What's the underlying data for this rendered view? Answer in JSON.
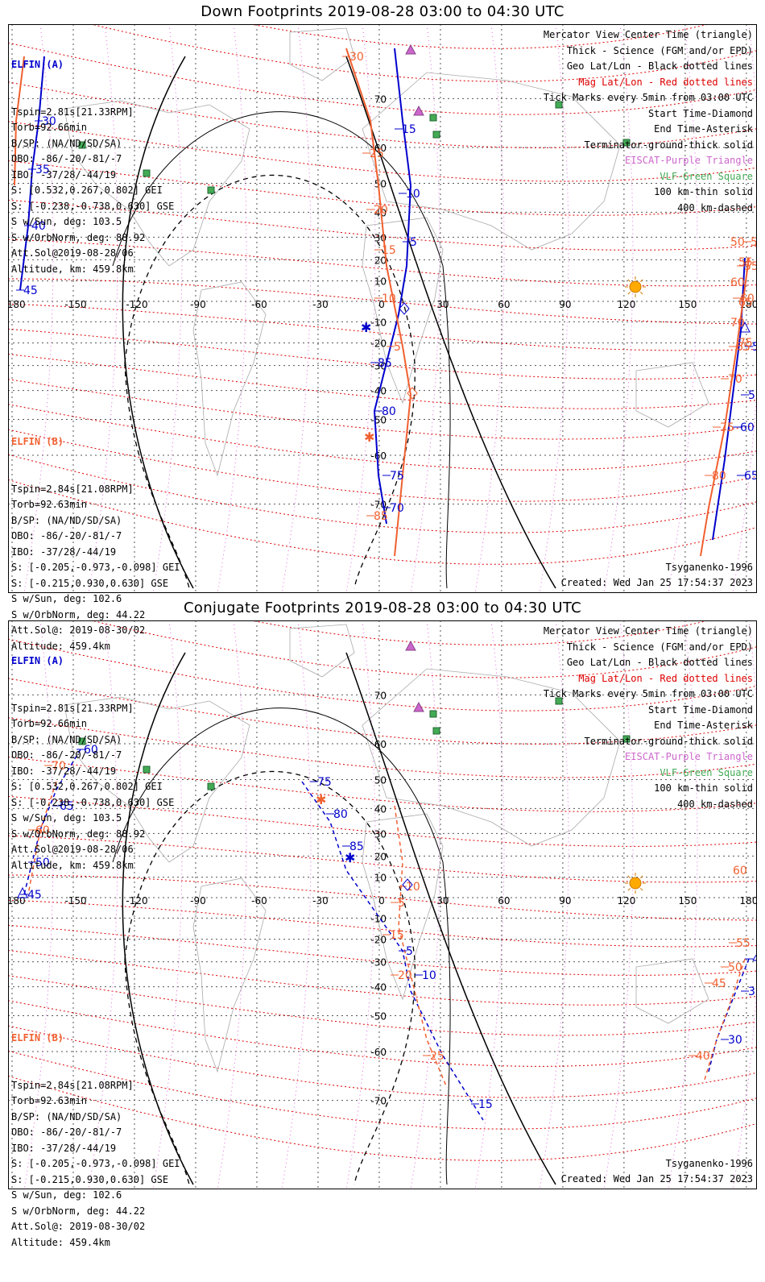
{
  "panels": [
    {
      "title": "Down Footprints 2019-08-28 03:00 to 04:30 UTC",
      "elfin_a": {
        "header": "ELFIN (A)",
        "lines": [
          "Tspin=2.81s[21.33RPM]",
          "Torb=92.66min",
          "B/SP: (NA/ND/SD/SA)",
          "OBO: -86/-20/-81/-7",
          "IBO: -37/28/-44/19",
          "S: [0.532,0.267,0.802] GEI",
          "S: [-0.238,-0.738,0.630] GSE",
          "S w/Sun, deg: 103.5",
          "S w/OrbNorm, deg: 88.92",
          "Att.Sol@2019-08-28/06",
          "Altitude, km: 459.8km"
        ]
      },
      "elfin_b": {
        "header": "ELFIN (B)",
        "lines": [
          "Tspin=2.84s[21.08RPM]",
          "Torb=92.63min",
          "B/SP: (NA/ND/SD/SA)",
          "OBO: -86/-20/-81/-7",
          "IBO: -37/28/-44/19",
          "S: [-0.205,-0.973,-0.098] GEI",
          "S: [-0.215,0.930,0.630] GSE",
          "S w/Sun, deg: 102.6",
          "S w/OrbNorm, deg: 44.22",
          "Att.Sol@: 2019-08-30/02",
          "Altitude: 459.4km"
        ]
      },
      "a_ticks": [
        "30",
        "35",
        "40",
        "45",
        "85",
        "80",
        "75",
        "70",
        "65",
        "60",
        "55",
        "50",
        "15",
        "10",
        "5"
      ],
      "b_ticks": [
        "30",
        "25",
        "20",
        "15",
        "10",
        "5",
        "85",
        "80",
        "75",
        "70",
        "65",
        "60",
        "55",
        "50"
      ]
    },
    {
      "title": "Conjugate Footprints 2019-08-28 03:00 to 04:30 UTC",
      "elfin_a": {
        "header": "ELFIN (A)",
        "lines": [
          "Tspin=2.81s[21.33RPM]",
          "Torb=92.66min",
          "B/SP: (NA/ND/SD/SA)",
          "OBO: -86/-20/-81/-7",
          "IBO: -37/28/-44/19",
          "S: [0.532,0.267,0.802] GEI",
          "S: [-0.238,-0.738,0.630] GSE",
          "S w/Sun, deg: 103.5",
          "S w/OrbNorm, deg: 88.92",
          "Att.Sol@2019-08-28/06",
          "Altitude, km: 459.8km"
        ]
      },
      "elfin_b": {
        "header": "ELFIN (B)",
        "lines": [
          "Tspin=2.84s[21.08RPM]",
          "Torb=92.63min",
          "B/SP: (NA/ND/SD/SA)",
          "OBO: -86/-20/-81/-7",
          "IBO: -37/28/-44/19",
          "S: [-0.205,-0.973,-0.098] GEI",
          "S: [-0.215,0.930,0.630] GSE",
          "S w/Sun, deg: 102.6",
          "S w/OrbNorm, deg: 44.22",
          "Att.Sol@: 2019-08-30/02",
          "Altitude: 459.4km"
        ]
      },
      "a_ticks": [
        "60",
        "65",
        "50",
        "45",
        "75",
        "80",
        "85",
        "5",
        "10",
        "15",
        "40",
        "35",
        "30"
      ],
      "b_ticks": [
        "70",
        "60",
        "5",
        "10",
        "15",
        "20",
        "25",
        "55",
        "50",
        "45",
        "40"
      ]
    }
  ],
  "legend": [
    {
      "text": "Mercator View Center Time (triangle)",
      "color": "#000000"
    },
    {
      "text": "Thick - Science (FGM and/or EPD)",
      "color": "#000000"
    },
    {
      "text": "Geo Lat/Lon - Black dotted lines",
      "color": "#000000"
    },
    {
      "text": "Mag Lat/Lon - Red dotted lines",
      "color": "#dd0000"
    },
    {
      "text": "Tick Marks every 5min from 03:00 UTC",
      "color": "#000000"
    },
    {
      "text": "Start Time-Diamond",
      "color": "#000000"
    },
    {
      "text": "End Time-Asterisk",
      "color": "#000000"
    },
    {
      "text": "Terminator-ground-thick solid",
      "color": "#000000"
    },
    {
      "text": "EISCAT-Purple Triangle",
      "color": "#cc66cc"
    },
    {
      "text": "VLF-Green Square",
      "color": "#44aa55"
    },
    {
      "text": "100 km-thin solid",
      "color": "#000000"
    },
    {
      "text": "400 km-dashed",
      "color": "#000000"
    }
  ],
  "credit": "Tsyganenko-1996",
  "created": "Created: Wed Jan 25 17:54:37 2023",
  "lon_labels": [
    "-180",
    "-150",
    "-120",
    "-90",
    "-60",
    "-30",
    "0",
    "30",
    "60",
    "90",
    "120",
    "150",
    "180"
  ],
  "lat_labels": [
    "70",
    "60",
    "50",
    "40",
    "30",
    "20",
    "10",
    "-10",
    "-20",
    "-30",
    "-40",
    "-50",
    "-60",
    "-70"
  ],
  "mag_lat_labels_top": [
    "50",
    "55",
    "60",
    "65",
    "70",
    "75"
  ],
  "mag_lat_labels_bottom": [
    "60"
  ],
  "colors": {
    "elfin_a": "#0000cc",
    "elfin_b": "#f06030",
    "mag_grid": "#dd0000",
    "geo_grid": "#000000",
    "eiscat": "#cc66cc",
    "vlf": "#44aa55",
    "sun": "#ffaa00"
  }
}
